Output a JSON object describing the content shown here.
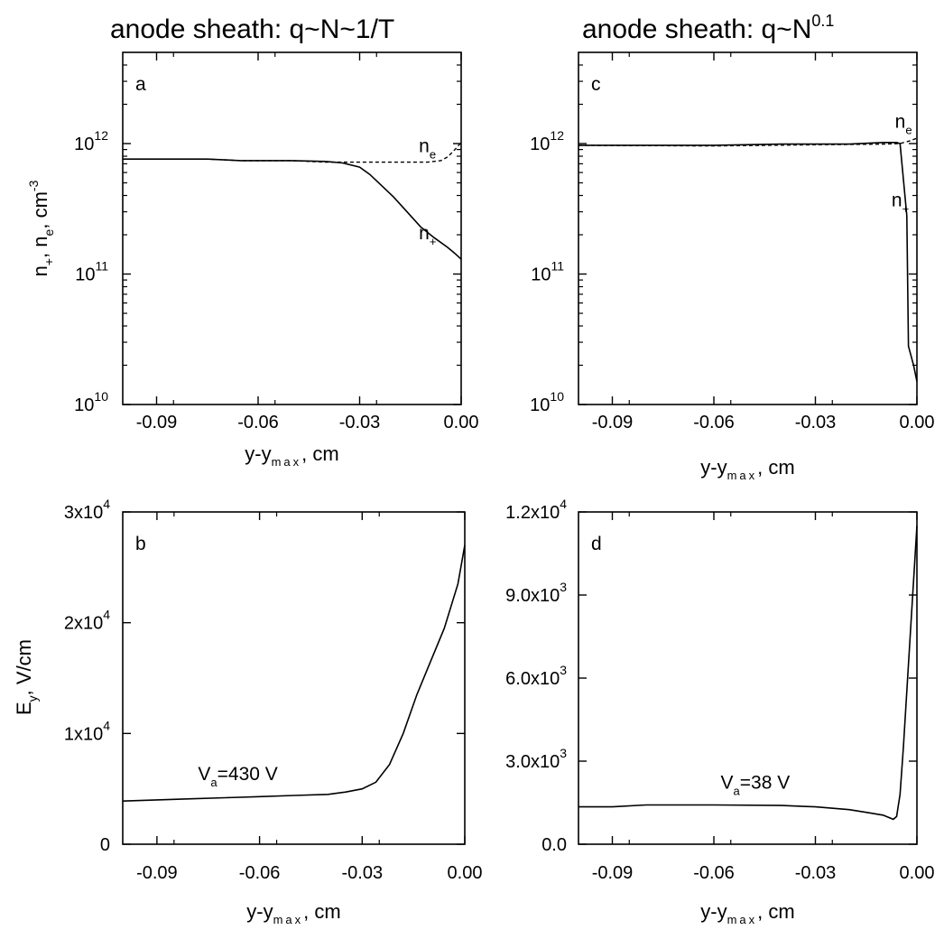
{
  "titles": {
    "left": "anode sheath: q~N~1/T",
    "right_main": "anode sheath: q~N",
    "right_exp": "0.1"
  },
  "chart_data": [
    {
      "id": "a",
      "type": "line",
      "panel_label": "a",
      "yscale": "log",
      "xlim": [
        -0.1,
        0.0
      ],
      "ylim": [
        10000000000.0,
        5000000000000.0
      ],
      "xticks": [
        "-0.09",
        "-0.06",
        "-0.03",
        "0.00"
      ],
      "xtick_values": [
        -0.09,
        -0.06,
        -0.03,
        0.0
      ],
      "yticks": [
        {
          "base": "10",
          "exp": "10",
          "value": 10000000000.0
        },
        {
          "base": "10",
          "exp": "11",
          "value": 100000000000.0
        },
        {
          "base": "10",
          "exp": "12",
          "value": 1000000000000.0
        }
      ],
      "xlabel": {
        "main": "y-y",
        "sub": "max",
        "tail": ", cm"
      },
      "ylabel": {
        "a": "n",
        "a_sub": "+",
        "b": ", n",
        "b_sub": "e",
        "c": ", cm",
        "c_sup": "-3"
      },
      "series": [
        {
          "name": "n+",
          "style": "solid",
          "x": [
            -0.1,
            -0.075,
            -0.065,
            -0.05,
            -0.04,
            -0.035,
            -0.03,
            -0.027,
            -0.024,
            -0.02,
            -0.016,
            -0.012,
            -0.008,
            -0.004,
            -0.002,
            0.0
          ],
          "y": [
            760000000000.0,
            760000000000.0,
            740000000000.0,
            740000000000.0,
            730000000000.0,
            710000000000.0,
            660000000000.0,
            580000000000.0,
            490000000000.0,
            390000000000.0,
            300000000000.0,
            230000000000.0,
            190000000000.0,
            160000000000.0,
            145000000000.0,
            130000000000.0
          ]
        },
        {
          "name": "ne",
          "style": "dashed",
          "x": [
            -0.1,
            -0.075,
            -0.065,
            -0.05,
            -0.04,
            -0.02,
            -0.01,
            -0.006,
            -0.004,
            -0.002,
            0.0
          ],
          "y": [
            760000000000.0,
            760000000000.0,
            740000000000.0,
            740000000000.0,
            720000000000.0,
            720000000000.0,
            720000000000.0,
            740000000000.0,
            790000000000.0,
            890000000000.0,
            1020000000000.0
          ]
        }
      ],
      "annotations": [
        {
          "base": "n",
          "sub": "e",
          "x": -0.0125,
          "y": 860000000000.0
        },
        {
          "base": "n",
          "sub": "+",
          "x": -0.0125,
          "y": 185000000000.0
        }
      ]
    },
    {
      "id": "c",
      "type": "line",
      "panel_label": "c",
      "yscale": "log",
      "xlim": [
        -0.1,
        0.0
      ],
      "ylim": [
        10000000000.0,
        5000000000000.0
      ],
      "xticks": [
        "-0.09",
        "-0.06",
        "-0.03",
        "0.00"
      ],
      "xtick_values": [
        -0.09,
        -0.06,
        -0.03,
        0.0
      ],
      "yticks": [
        {
          "base": "10",
          "exp": "10",
          "value": 10000000000.0
        },
        {
          "base": "10",
          "exp": "11",
          "value": 100000000000.0
        },
        {
          "base": "10",
          "exp": "12",
          "value": 1000000000000.0
        }
      ],
      "xlabel": {
        "main": "y-y",
        "sub": "max",
        "tail": ", cm"
      },
      "series": [
        {
          "name": "n+",
          "style": "solid",
          "x": [
            -0.1,
            -0.06,
            -0.04,
            -0.02,
            -0.01,
            -0.006,
            -0.005,
            -0.003,
            -0.0025,
            -0.001,
            0.0
          ],
          "y": [
            970000000000.0,
            970000000000.0,
            990000000000.0,
            990000000000.0,
            1020000000000.0,
            1020000000000.0,
            1000000000000.0,
            280000000000.0,
            28000000000.0,
            20000000000.0,
            15000000000.0
          ]
        },
        {
          "name": "ne",
          "style": "dashed",
          "x": [
            -0.1,
            -0.06,
            -0.03,
            -0.01,
            -0.005,
            -0.002,
            0.0
          ],
          "y": [
            970000000000.0,
            960000000000.0,
            980000000000.0,
            990000000000.0,
            1000000000000.0,
            1050000000000.0,
            1100000000000.0
          ]
        }
      ],
      "annotations": [
        {
          "base": "n",
          "sub": "e",
          "x": -0.0065,
          "y": 1320000000000.0
        },
        {
          "base": "n",
          "sub": "+",
          "x": -0.0075,
          "y": 330000000000.0
        }
      ]
    },
    {
      "id": "b",
      "type": "line",
      "panel_label": "b",
      "yscale": "linear",
      "xlim": [
        -0.1,
        0.0
      ],
      "ylim": [
        0,
        30000
      ],
      "xticks": [
        "-0.09",
        "-0.06",
        "-0.03",
        "0.00"
      ],
      "xtick_values": [
        -0.09,
        -0.06,
        -0.03,
        0.0
      ],
      "yticks": [
        {
          "base": "0",
          "value": 0
        },
        {
          "base": "1x10",
          "exp": "4",
          "value": 10000
        },
        {
          "base": "2x10",
          "exp": "4",
          "value": 20000
        },
        {
          "base": "3x10",
          "exp": "4",
          "value": 30000
        }
      ],
      "xlabel": {
        "main": "y-y",
        "sub": "max",
        "tail": ", cm"
      },
      "ylabel": {
        "a": "E",
        "a_sub": "y",
        "b": ", V/cm"
      },
      "series": [
        {
          "name": "Ey",
          "style": "solid",
          "x": [
            -0.1,
            -0.09,
            -0.08,
            -0.07,
            -0.06,
            -0.05,
            -0.04,
            -0.035,
            -0.03,
            -0.026,
            -0.022,
            -0.018,
            -0.014,
            -0.01,
            -0.006,
            -0.002,
            0.0
          ],
          "y": [
            3900,
            4000,
            4100,
            4200,
            4300,
            4400,
            4500,
            4700,
            5000,
            5600,
            7200,
            10000,
            13500,
            16500,
            19500,
            23500,
            27000
          ]
        }
      ],
      "annotations": [
        {
          "base": "V",
          "sub": "a",
          "tail": "=430 V",
          "x": -0.078,
          "y": 5800
        }
      ]
    },
    {
      "id": "d",
      "type": "line",
      "panel_label": "d",
      "yscale": "linear",
      "xlim": [
        -0.1,
        0.0
      ],
      "ylim": [
        0,
        12000
      ],
      "xticks": [
        "-0.09",
        "-0.06",
        "-0.03",
        "0.00"
      ],
      "xtick_values": [
        -0.09,
        -0.06,
        -0.03,
        0.0
      ],
      "yticks": [
        {
          "base": "0.0",
          "value": 0
        },
        {
          "base": "3.0x10",
          "exp": "3",
          "value": 3000
        },
        {
          "base": "6.0x10",
          "exp": "3",
          "value": 6000
        },
        {
          "base": "9.0x10",
          "exp": "3",
          "value": 9000
        },
        {
          "base": "1.2x10",
          "exp": "4",
          "value": 12000
        }
      ],
      "xlabel": {
        "main": "y-y",
        "sub": "max",
        "tail": ", cm"
      },
      "series": [
        {
          "name": "Ey",
          "style": "solid",
          "x": [
            -0.1,
            -0.09,
            -0.08,
            -0.06,
            -0.04,
            -0.03,
            -0.02,
            -0.015,
            -0.01,
            -0.007,
            -0.006,
            -0.005,
            -0.004,
            -0.002,
            0.0
          ],
          "y": [
            1350,
            1350,
            1420,
            1420,
            1400,
            1350,
            1250,
            1150,
            1050,
            900,
            1000,
            1800,
            3500,
            7500,
            11500
          ]
        }
      ],
      "annotations": [
        {
          "base": "V",
          "sub": "a",
          "tail": "=38 V",
          "x": -0.058,
          "y": 2000
        }
      ]
    }
  ]
}
